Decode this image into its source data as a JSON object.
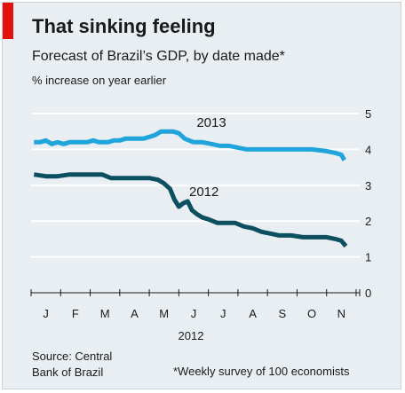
{
  "header": {
    "title": "That sinking feeling",
    "subtitle": "Forecast of Brazil’s GDP, by date made*",
    "units": "% increase on year earlier"
  },
  "footer": {
    "source_line1": "Source: Central",
    "source_line2": "Bank of Brazil",
    "footnote": "*Weekly survey of 100 economists"
  },
  "colors": {
    "accent": "#e3120b",
    "series_2013": "#1fa5dc",
    "series_2012": "#0b4f60",
    "gridline": "#ffffff",
    "background": "#e8eef2"
  },
  "chart_data": {
    "type": "line",
    "title": "That sinking feeling",
    "subtitle": "Forecast of Brazil’s GDP, by date made*",
    "ylabel": "% increase on year earlier",
    "xlabel": "2012",
    "x_tick_labels": [
      "J",
      "F",
      "M",
      "A",
      "M",
      "J",
      "J",
      "A",
      "S",
      "O",
      "N"
    ],
    "y_ticks": [
      0,
      1,
      2,
      3,
      4,
      5
    ],
    "ylim": [
      0,
      5
    ],
    "xlim": [
      0,
      11
    ],
    "y_axis_side": "right",
    "grid": "horizontal",
    "series": [
      {
        "name": "2013",
        "color": "#1fa5dc",
        "points": [
          [
            0.1,
            4.2
          ],
          [
            0.3,
            4.2
          ],
          [
            0.5,
            4.25
          ],
          [
            0.7,
            4.15
          ],
          [
            0.9,
            4.2
          ],
          [
            1.1,
            4.15
          ],
          [
            1.3,
            4.2
          ],
          [
            1.6,
            4.2
          ],
          [
            1.9,
            4.2
          ],
          [
            2.1,
            4.25
          ],
          [
            2.3,
            4.2
          ],
          [
            2.6,
            4.2
          ],
          [
            2.8,
            4.25
          ],
          [
            3.0,
            4.25
          ],
          [
            3.2,
            4.3
          ],
          [
            3.4,
            4.3
          ],
          [
            3.6,
            4.3
          ],
          [
            3.8,
            4.3
          ],
          [
            4.0,
            4.35
          ],
          [
            4.2,
            4.4
          ],
          [
            4.4,
            4.5
          ],
          [
            4.6,
            4.5
          ],
          [
            4.8,
            4.5
          ],
          [
            5.0,
            4.45
          ],
          [
            5.2,
            4.3
          ],
          [
            5.5,
            4.2
          ],
          [
            5.8,
            4.2
          ],
          [
            6.1,
            4.15
          ],
          [
            6.4,
            4.1
          ],
          [
            6.7,
            4.1
          ],
          [
            7.0,
            4.05
          ],
          [
            7.3,
            4.0
          ],
          [
            7.6,
            4.0
          ],
          [
            8.0,
            4.0
          ],
          [
            8.5,
            4.0
          ],
          [
            9.0,
            4.0
          ],
          [
            9.5,
            4.0
          ],
          [
            10.0,
            3.95
          ],
          [
            10.3,
            3.9
          ],
          [
            10.5,
            3.85
          ],
          [
            10.6,
            3.7
          ]
        ]
      },
      {
        "name": "2012",
        "color": "#0b4f60",
        "points": [
          [
            0.1,
            3.3
          ],
          [
            0.5,
            3.25
          ],
          [
            0.9,
            3.25
          ],
          [
            1.3,
            3.3
          ],
          [
            1.7,
            3.3
          ],
          [
            2.1,
            3.3
          ],
          [
            2.4,
            3.3
          ],
          [
            2.7,
            3.2
          ],
          [
            3.0,
            3.2
          ],
          [
            3.3,
            3.2
          ],
          [
            3.6,
            3.2
          ],
          [
            4.0,
            3.2
          ],
          [
            4.3,
            3.15
          ],
          [
            4.5,
            3.05
          ],
          [
            4.7,
            2.9
          ],
          [
            4.85,
            2.6
          ],
          [
            5.0,
            2.4
          ],
          [
            5.15,
            2.5
          ],
          [
            5.3,
            2.55
          ],
          [
            5.45,
            2.3
          ],
          [
            5.6,
            2.2
          ],
          [
            5.8,
            2.1
          ],
          [
            6.0,
            2.05
          ],
          [
            6.3,
            1.95
          ],
          [
            6.6,
            1.95
          ],
          [
            6.9,
            1.95
          ],
          [
            7.2,
            1.85
          ],
          [
            7.5,
            1.8
          ],
          [
            7.8,
            1.7
          ],
          [
            8.1,
            1.65
          ],
          [
            8.4,
            1.6
          ],
          [
            8.8,
            1.6
          ],
          [
            9.2,
            1.55
          ],
          [
            9.6,
            1.55
          ],
          [
            10.0,
            1.55
          ],
          [
            10.3,
            1.5
          ],
          [
            10.5,
            1.45
          ],
          [
            10.65,
            1.3
          ]
        ]
      }
    ]
  }
}
